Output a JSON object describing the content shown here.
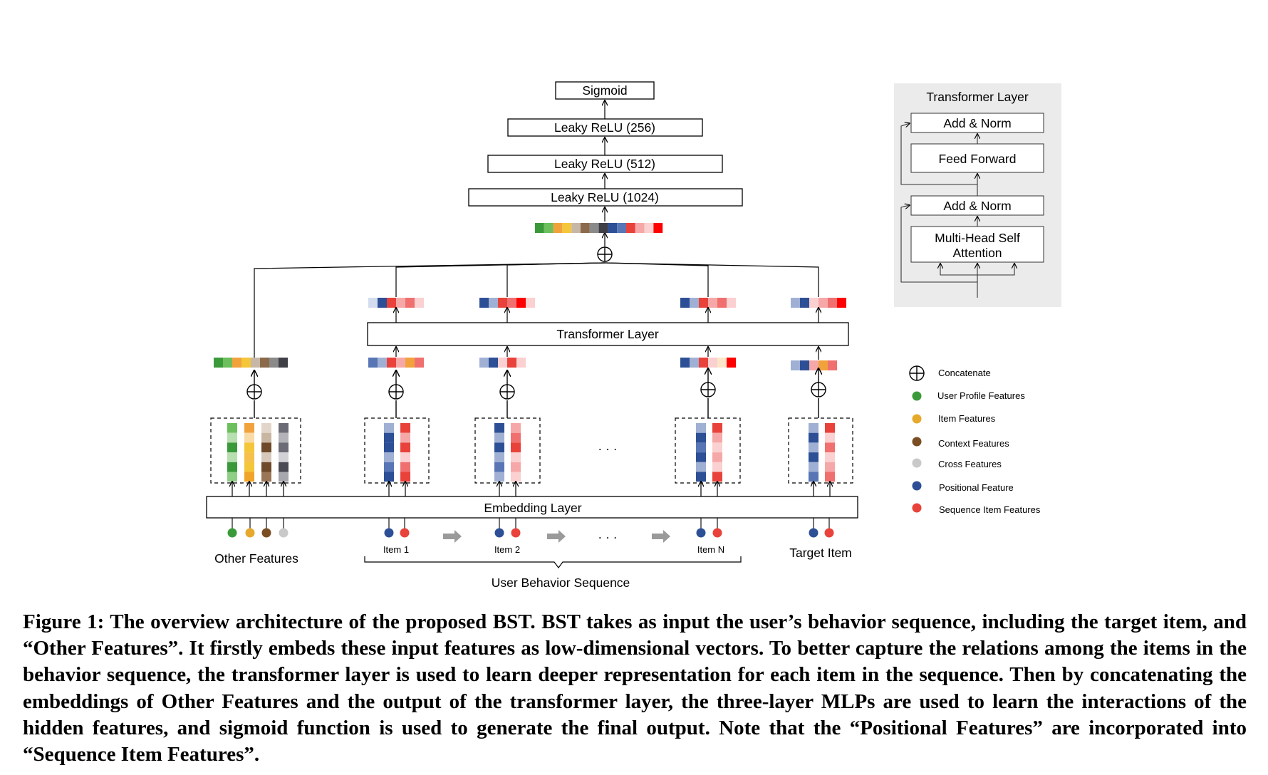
{
  "mlp": {
    "sigmoid": "Sigmoid",
    "relu256": "Leaky ReLU (256)",
    "relu512": "Leaky ReLU (512)",
    "relu1024": "Leaky ReLU (1024)"
  },
  "transformer_block": "Transformer Layer",
  "embedding_block": "Embedding  Layer",
  "inputs": {
    "other_features": "Other Features",
    "item1": "Item 1",
    "item2": "Item 2",
    "itemN": "Item N",
    "target_item": "Target Item",
    "ellipsis": "· · ·",
    "user_behavior_sequence": "User Behavior Sequence"
  },
  "transformer_detail": {
    "title": "Transformer Layer",
    "add_norm_top": "Add & Norm",
    "feed_forward": "Feed Forward",
    "add_norm_bottom": "Add & Norm",
    "mhsa_line1": "Multi-Head Self",
    "mhsa_line2": "Attention"
  },
  "legend": {
    "concatenate": "Concatenate",
    "user_profile": "User Profile Features",
    "item_features": "Item Features",
    "context": "Context Features",
    "cross": "Cross Features",
    "positional": "Positional Feature",
    "sequence_item": "Sequence Item Features"
  },
  "colors": {
    "green": "#3a9a3a",
    "yellow": "#e6a92b",
    "brown": "#7a4e22",
    "gray": "#c9c9c9",
    "blue": "#2d4f96",
    "red": "#e8423a",
    "panel_bg": "#ebebeb"
  },
  "caption": "Figure 1: The overview architecture of the proposed BST. BST takes as input the user’s behavior sequence, including the target item, and “Other Features”. It firstly embeds these input features as low-dimensional vectors. To better capture the relations among the items in the behavior sequence, the transformer layer is used to learn deeper representation for each item in the sequence. Then by concatenating the embeddings of Other Features and the output of the transformer layer, the three-layer MLPs are used to learn the interactions of the hidden features, and sigmoid function is used to generate the final output. Note that the “Positional Features” are incorporated into “Sequence Item Features”."
}
